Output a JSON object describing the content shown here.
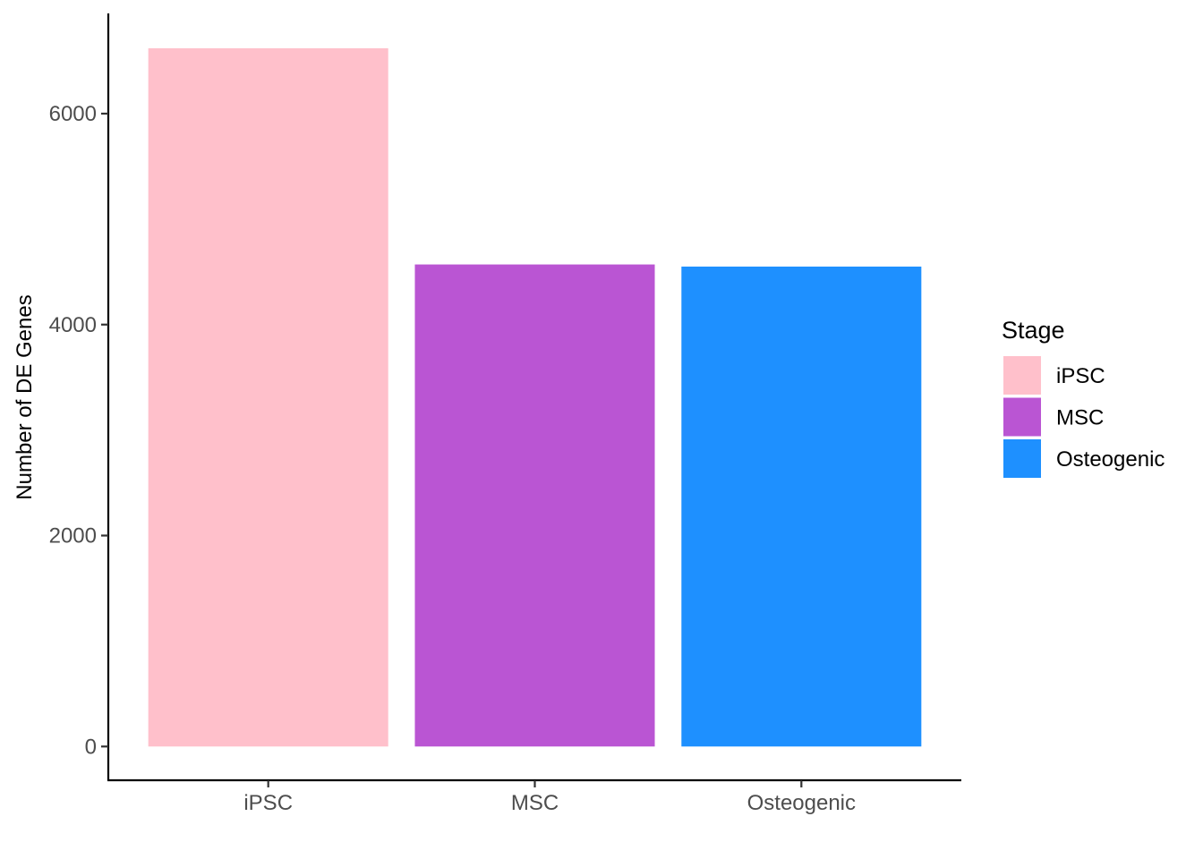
{
  "chart_data": {
    "type": "bar",
    "categories": [
      "iPSC",
      "MSC",
      "Osteogenic"
    ],
    "values": [
      6620,
      4570,
      4550
    ],
    "colors": [
      "#FFC0CB",
      "#BA55D3",
      "#1E90FF"
    ],
    "title": "",
    "xlabel": "",
    "ylabel": "Number of DE Genes",
    "ylim": [
      -320,
      6950
    ],
    "yticks": [
      0,
      2000,
      4000,
      6000
    ],
    "grid": false,
    "legend": {
      "title": "Stage",
      "placement": "right",
      "entries": [
        "iPSC",
        "MSC",
        "Osteogenic"
      ]
    }
  }
}
